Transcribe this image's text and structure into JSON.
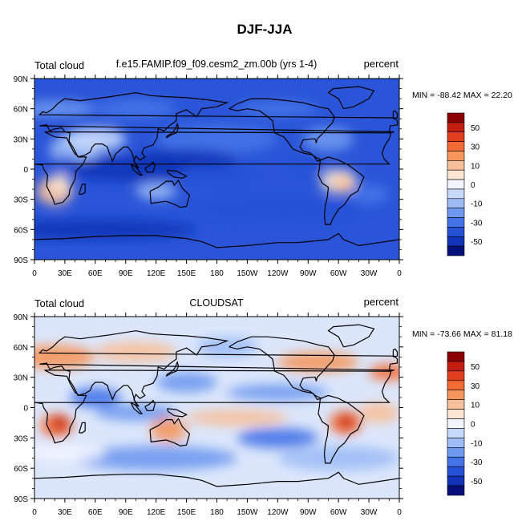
{
  "figure_title": "DJF-JJA",
  "colors": {
    "levels": [
      {
        "label": "",
        "color": "#8b0000"
      },
      {
        "label": "50",
        "color": "#c21e10"
      },
      {
        "label": "",
        "color": "#e23f1e"
      },
      {
        "label": "30",
        "color": "#f26a34"
      },
      {
        "label": "",
        "color": "#f5975d"
      },
      {
        "label": "10",
        "color": "#f8c09a"
      },
      {
        "label": "",
        "color": "#fde5d2"
      },
      {
        "label": "0",
        "color": "#f2f5ff"
      },
      {
        "label": "",
        "color": "#c7d9fb"
      },
      {
        "label": "-10",
        "color": "#9dbcf6"
      },
      {
        "label": "",
        "color": "#6e99ef"
      },
      {
        "label": "-30",
        "color": "#4473e8"
      },
      {
        "label": "",
        "color": "#2451d6"
      },
      {
        "label": "-50",
        "color": "#1233b8"
      },
      {
        "label": "",
        "color": "#050f7a"
      }
    ]
  },
  "chart_data": [
    {
      "type": "heatmap",
      "title": "f.e15.FAMIP.f09_f09.cesm2_zm.00b (yrs 1-4)",
      "left_label": "Total cloud",
      "right_label": "percent",
      "stats": "MIN = -88.42 MAX =  22.20",
      "min": -88.42,
      "max": 22.2,
      "x_ticks": [
        "0",
        "30E",
        "60E",
        "90E",
        "120E",
        "150E",
        "180",
        "150W",
        "120W",
        "90W",
        "60W",
        "30W",
        "0"
      ],
      "y_ticks": [
        "90N",
        "60N",
        "30N",
        "0",
        "30S",
        "60S",
        "90S"
      ],
      "colorbar_labels": [
        "50",
        "30",
        "10",
        "0",
        "-10",
        "-30",
        "-50"
      ],
      "xlim": [
        0,
        360
      ],
      "ylim": [
        -90,
        90
      ],
      "description_values": {
        "base": -25,
        "warm_spots": [
          "Southern Africa",
          "Amazon",
          "Sahara margin"
        ]
      }
    },
    {
      "type": "heatmap",
      "title": "CLOUDSAT",
      "left_label": "Total cloud",
      "right_label": "percent",
      "stats": "MIN = -73.66 MAX =  81.18",
      "min": -73.66,
      "max": 81.18,
      "x_ticks": [
        "0",
        "30E",
        "60E",
        "90E",
        "120E",
        "150E",
        "180",
        "150W",
        "120W",
        "90W",
        "60W",
        "30W",
        "0"
      ],
      "y_ticks": [
        "90N",
        "60N",
        "30N",
        "0",
        "30S",
        "60S",
        "90S"
      ],
      "colorbar_labels": [
        "50",
        "30",
        "10",
        "0",
        "-10",
        "-30",
        "-50"
      ],
      "xlim": [
        0,
        360
      ],
      "ylim": [
        -90,
        90
      ],
      "description_values": {
        "base": 5,
        "warm_spots": [
          "Southern Africa",
          "Amazon",
          "Australia",
          "Northern midlatitudes"
        ]
      }
    }
  ]
}
